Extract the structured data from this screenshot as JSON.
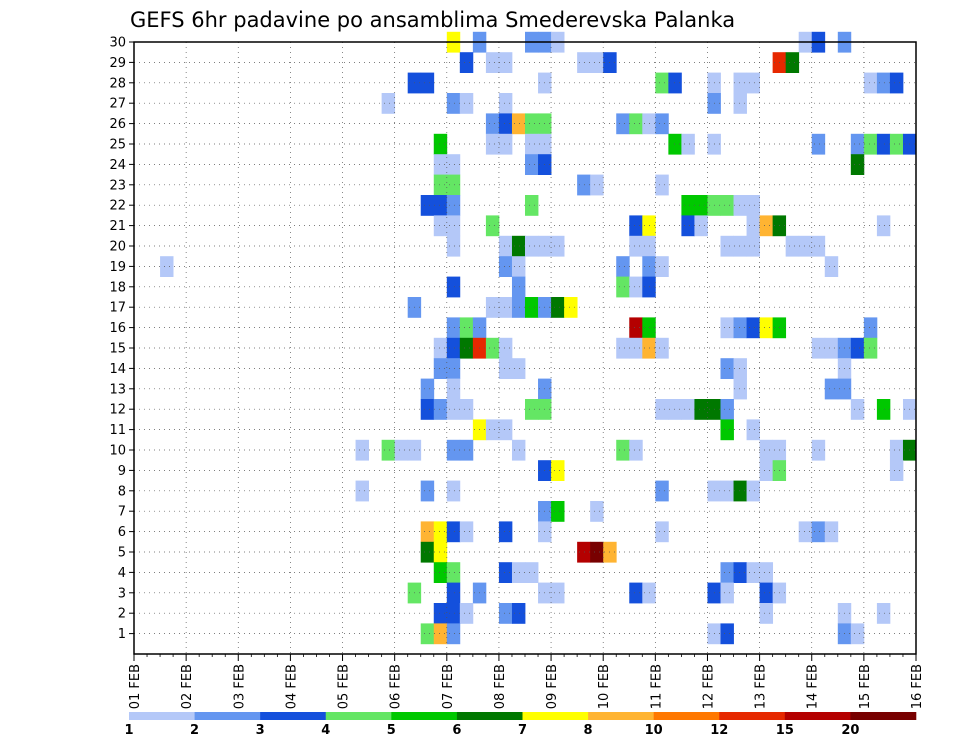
{
  "chart_data": {
    "type": "heatmap",
    "title": "GEFS 6hr padavine po ansamblima Smederevska Palanka",
    "xlabel": "",
    "ylabel": "",
    "x_tick_labels": [
      "01 FEB",
      "02 FEB",
      "03 FEB",
      "04 FEB",
      "05 FEB",
      "06 FEB",
      "07 FEB",
      "08 FEB",
      "09 FEB",
      "10 FEB",
      "11 FEB",
      "12 FEB",
      "13 FEB",
      "14 FEB",
      "15 FEB",
      "16 FEB"
    ],
    "x_range_steps": [
      0,
      60
    ],
    "y_tick_labels": [
      "1",
      "2",
      "3",
      "4",
      "5",
      "6",
      "7",
      "8",
      "9",
      "10",
      "11",
      "12",
      "13",
      "14",
      "15",
      "16",
      "17",
      "18",
      "19",
      "20",
      "21",
      "22",
      "23",
      "24",
      "25",
      "26",
      "27",
      "28",
      "29",
      "30"
    ],
    "y_range": [
      0,
      30
    ],
    "grid": true,
    "legend_location": "bottom",
    "color_scale": {
      "colors": [
        "#b4c8f8",
        "#6496f0",
        "#1450dc",
        "#64e664",
        "#00c800",
        "#007800",
        "#ffff00",
        "#ffb432",
        "#ff7800",
        "#e62800",
        "#b40000",
        "#780000"
      ],
      "labels": [
        "1",
        "2",
        "3",
        "4",
        "5",
        "6",
        "7",
        "8",
        "10",
        "12",
        "15",
        "20"
      ]
    },
    "cells": [
      [
        24,
        30,
        6
      ],
      [
        26,
        30,
        1
      ],
      [
        30,
        30,
        1
      ],
      [
        31,
        30,
        1
      ],
      [
        32,
        30,
        0
      ],
      [
        51,
        30,
        0
      ],
      [
        52,
        30,
        2
      ],
      [
        54,
        30,
        1
      ],
      [
        25,
        29,
        2
      ],
      [
        27,
        29,
        0
      ],
      [
        28,
        29,
        0
      ],
      [
        34,
        29,
        0
      ],
      [
        35,
        29,
        0
      ],
      [
        36,
        29,
        2
      ],
      [
        49,
        29,
        9
      ],
      [
        50,
        29,
        5
      ],
      [
        21,
        28,
        2
      ],
      [
        22,
        28,
        2
      ],
      [
        31,
        28,
        0
      ],
      [
        40,
        28,
        3
      ],
      [
        41,
        28,
        2
      ],
      [
        44,
        28,
        0
      ],
      [
        46,
        28,
        0
      ],
      [
        47,
        28,
        0
      ],
      [
        56,
        28,
        0
      ],
      [
        57,
        28,
        1
      ],
      [
        58,
        28,
        2
      ],
      [
        19,
        27,
        0
      ],
      [
        24,
        27,
        1
      ],
      [
        25,
        27,
        0
      ],
      [
        28,
        27,
        0
      ],
      [
        44,
        27,
        1
      ],
      [
        46,
        27,
        0
      ],
      [
        27,
        26,
        1
      ],
      [
        28,
        26,
        2
      ],
      [
        29,
        26,
        7
      ],
      [
        30,
        26,
        3
      ],
      [
        31,
        26,
        3
      ],
      [
        37,
        26,
        1
      ],
      [
        38,
        26,
        3
      ],
      [
        39,
        26,
        0
      ],
      [
        40,
        26,
        1
      ],
      [
        23,
        25,
        4
      ],
      [
        27,
        25,
        0
      ],
      [
        28,
        25,
        0
      ],
      [
        30,
        25,
        0
      ],
      [
        31,
        25,
        0
      ],
      [
        41,
        25,
        4
      ],
      [
        42,
        25,
        0
      ],
      [
        44,
        25,
        0
      ],
      [
        52,
        25,
        1
      ],
      [
        55,
        25,
        1
      ],
      [
        56,
        25,
        3
      ],
      [
        57,
        25,
        2
      ],
      [
        58,
        25,
        3
      ],
      [
        59,
        25,
        2
      ],
      [
        23,
        24,
        0
      ],
      [
        24,
        24,
        0
      ],
      [
        30,
        24,
        1
      ],
      [
        31,
        24,
        2
      ],
      [
        55,
        24,
        5
      ],
      [
        23,
        23,
        3
      ],
      [
        24,
        23,
        3
      ],
      [
        34,
        23,
        1
      ],
      [
        35,
        23,
        0
      ],
      [
        40,
        23,
        0
      ],
      [
        22,
        22,
        2
      ],
      [
        23,
        22,
        2
      ],
      [
        24,
        22,
        1
      ],
      [
        30,
        22,
        3
      ],
      [
        42,
        22,
        4
      ],
      [
        43,
        22,
        4
      ],
      [
        44,
        22,
        3
      ],
      [
        45,
        22,
        3
      ],
      [
        46,
        22,
        0
      ],
      [
        47,
        22,
        0
      ],
      [
        23,
        21,
        0
      ],
      [
        24,
        21,
        0
      ],
      [
        27,
        21,
        3
      ],
      [
        38,
        21,
        2
      ],
      [
        39,
        21,
        6
      ],
      [
        42,
        21,
        2
      ],
      [
        43,
        21,
        0
      ],
      [
        47,
        21,
        0
      ],
      [
        48,
        21,
        7
      ],
      [
        49,
        21,
        5
      ],
      [
        57,
        21,
        0
      ],
      [
        24,
        20,
        0
      ],
      [
        28,
        20,
        0
      ],
      [
        29,
        20,
        5
      ],
      [
        30,
        20,
        0
      ],
      [
        31,
        20,
        0
      ],
      [
        32,
        20,
        0
      ],
      [
        38,
        20,
        0
      ],
      [
        39,
        20,
        0
      ],
      [
        45,
        20,
        0
      ],
      [
        46,
        20,
        0
      ],
      [
        47,
        20,
        0
      ],
      [
        50,
        20,
        0
      ],
      [
        51,
        20,
        0
      ],
      [
        52,
        20,
        0
      ],
      [
        2,
        19,
        0
      ],
      [
        28,
        19,
        1
      ],
      [
        29,
        19,
        0
      ],
      [
        37,
        19,
        1
      ],
      [
        39,
        19,
        1
      ],
      [
        40,
        19,
        0
      ],
      [
        53,
        19,
        0
      ],
      [
        24,
        18,
        2
      ],
      [
        29,
        18,
        1
      ],
      [
        37,
        18,
        3
      ],
      [
        38,
        18,
        0
      ],
      [
        39,
        18,
        2
      ],
      [
        21,
        17,
        1
      ],
      [
        27,
        17,
        0
      ],
      [
        28,
        17,
        0
      ],
      [
        29,
        17,
        1
      ],
      [
        30,
        17,
        4
      ],
      [
        31,
        17,
        1
      ],
      [
        32,
        17,
        5
      ],
      [
        33,
        17,
        6
      ],
      [
        24,
        16,
        1
      ],
      [
        25,
        16,
        3
      ],
      [
        26,
        16,
        1
      ],
      [
        38,
        16,
        10
      ],
      [
        39,
        16,
        4
      ],
      [
        45,
        16,
        0
      ],
      [
        46,
        16,
        1
      ],
      [
        47,
        16,
        2
      ],
      [
        48,
        16,
        6
      ],
      [
        49,
        16,
        4
      ],
      [
        56,
        16,
        1
      ],
      [
        23,
        15,
        0
      ],
      [
        24,
        15,
        2
      ],
      [
        25,
        15,
        5
      ],
      [
        26,
        15,
        9
      ],
      [
        27,
        15,
        3
      ],
      [
        28,
        15,
        0
      ],
      [
        37,
        15,
        0
      ],
      [
        38,
        15,
        0
      ],
      [
        39,
        15,
        7
      ],
      [
        40,
        15,
        0
      ],
      [
        52,
        15,
        0
      ],
      [
        53,
        15,
        0
      ],
      [
        54,
        15,
        1
      ],
      [
        55,
        15,
        2
      ],
      [
        56,
        15,
        3
      ],
      [
        23,
        14,
        1
      ],
      [
        24,
        14,
        1
      ],
      [
        28,
        14,
        0
      ],
      [
        29,
        14,
        0
      ],
      [
        45,
        14,
        1
      ],
      [
        46,
        14,
        0
      ],
      [
        54,
        14,
        0
      ],
      [
        22,
        13,
        1
      ],
      [
        24,
        13,
        0
      ],
      [
        31,
        13,
        1
      ],
      [
        46,
        13,
        0
      ],
      [
        53,
        13,
        1
      ],
      [
        54,
        13,
        1
      ],
      [
        22,
        12,
        2
      ],
      [
        23,
        12,
        1
      ],
      [
        24,
        12,
        0
      ],
      [
        25,
        12,
        0
      ],
      [
        30,
        12,
        3
      ],
      [
        31,
        12,
        3
      ],
      [
        40,
        12,
        0
      ],
      [
        41,
        12,
        0
      ],
      [
        42,
        12,
        0
      ],
      [
        43,
        12,
        5
      ],
      [
        44,
        12,
        5
      ],
      [
        45,
        12,
        1
      ],
      [
        55,
        12,
        0
      ],
      [
        57,
        12,
        4
      ],
      [
        59,
        12,
        0
      ],
      [
        26,
        11,
        6
      ],
      [
        27,
        11,
        0
      ],
      [
        28,
        11,
        0
      ],
      [
        45,
        11,
        4
      ],
      [
        47,
        11,
        0
      ],
      [
        17,
        10,
        0
      ],
      [
        19,
        10,
        3
      ],
      [
        20,
        10,
        0
      ],
      [
        21,
        10,
        0
      ],
      [
        24,
        10,
        1
      ],
      [
        25,
        10,
        1
      ],
      [
        29,
        10,
        0
      ],
      [
        37,
        10,
        3
      ],
      [
        38,
        10,
        0
      ],
      [
        48,
        10,
        0
      ],
      [
        49,
        10,
        0
      ],
      [
        52,
        10,
        0
      ],
      [
        58,
        10,
        0
      ],
      [
        59,
        10,
        5
      ],
      [
        31,
        9,
        2
      ],
      [
        32,
        9,
        6
      ],
      [
        48,
        9,
        0
      ],
      [
        49,
        9,
        3
      ],
      [
        58,
        9,
        0
      ],
      [
        17,
        8,
        0
      ],
      [
        22,
        8,
        1
      ],
      [
        24,
        8,
        0
      ],
      [
        40,
        8,
        1
      ],
      [
        44,
        8,
        0
      ],
      [
        45,
        8,
        0
      ],
      [
        46,
        8,
        5
      ],
      [
        47,
        8,
        0
      ],
      [
        31,
        7,
        1
      ],
      [
        32,
        7,
        4
      ],
      [
        35,
        7,
        0
      ],
      [
        22,
        6,
        7
      ],
      [
        23,
        6,
        6
      ],
      [
        24,
        6,
        2
      ],
      [
        25,
        6,
        0
      ],
      [
        28,
        6,
        2
      ],
      [
        31,
        6,
        0
      ],
      [
        40,
        6,
        0
      ],
      [
        51,
        6,
        0
      ],
      [
        52,
        6,
        1
      ],
      [
        53,
        6,
        0
      ],
      [
        22,
        5,
        5
      ],
      [
        23,
        5,
        6
      ],
      [
        34,
        5,
        10
      ],
      [
        35,
        5,
        11
      ],
      [
        36,
        5,
        7
      ],
      [
        23,
        4,
        4
      ],
      [
        24,
        4,
        3
      ],
      [
        28,
        4,
        2
      ],
      [
        29,
        4,
        0
      ],
      [
        30,
        4,
        0
      ],
      [
        45,
        4,
        1
      ],
      [
        46,
        4,
        2
      ],
      [
        47,
        4,
        0
      ],
      [
        48,
        4,
        0
      ],
      [
        21,
        3,
        3
      ],
      [
        24,
        3,
        2
      ],
      [
        26,
        3,
        1
      ],
      [
        31,
        3,
        0
      ],
      [
        32,
        3,
        0
      ],
      [
        38,
        3,
        2
      ],
      [
        39,
        3,
        0
      ],
      [
        44,
        3,
        2
      ],
      [
        45,
        3,
        0
      ],
      [
        48,
        3,
        2
      ],
      [
        49,
        3,
        0
      ],
      [
        23,
        2,
        2
      ],
      [
        24,
        2,
        2
      ],
      [
        25,
        2,
        0
      ],
      [
        28,
        2,
        1
      ],
      [
        29,
        2,
        2
      ],
      [
        48,
        2,
        0
      ],
      [
        54,
        2,
        0
      ],
      [
        57,
        2,
        0
      ],
      [
        22,
        1,
        3
      ],
      [
        23,
        1,
        7
      ],
      [
        24,
        1,
        1
      ],
      [
        44,
        1,
        0
      ],
      [
        45,
        1,
        2
      ],
      [
        54,
        1,
        1
      ],
      [
        55,
        1,
        0
      ]
    ]
  }
}
